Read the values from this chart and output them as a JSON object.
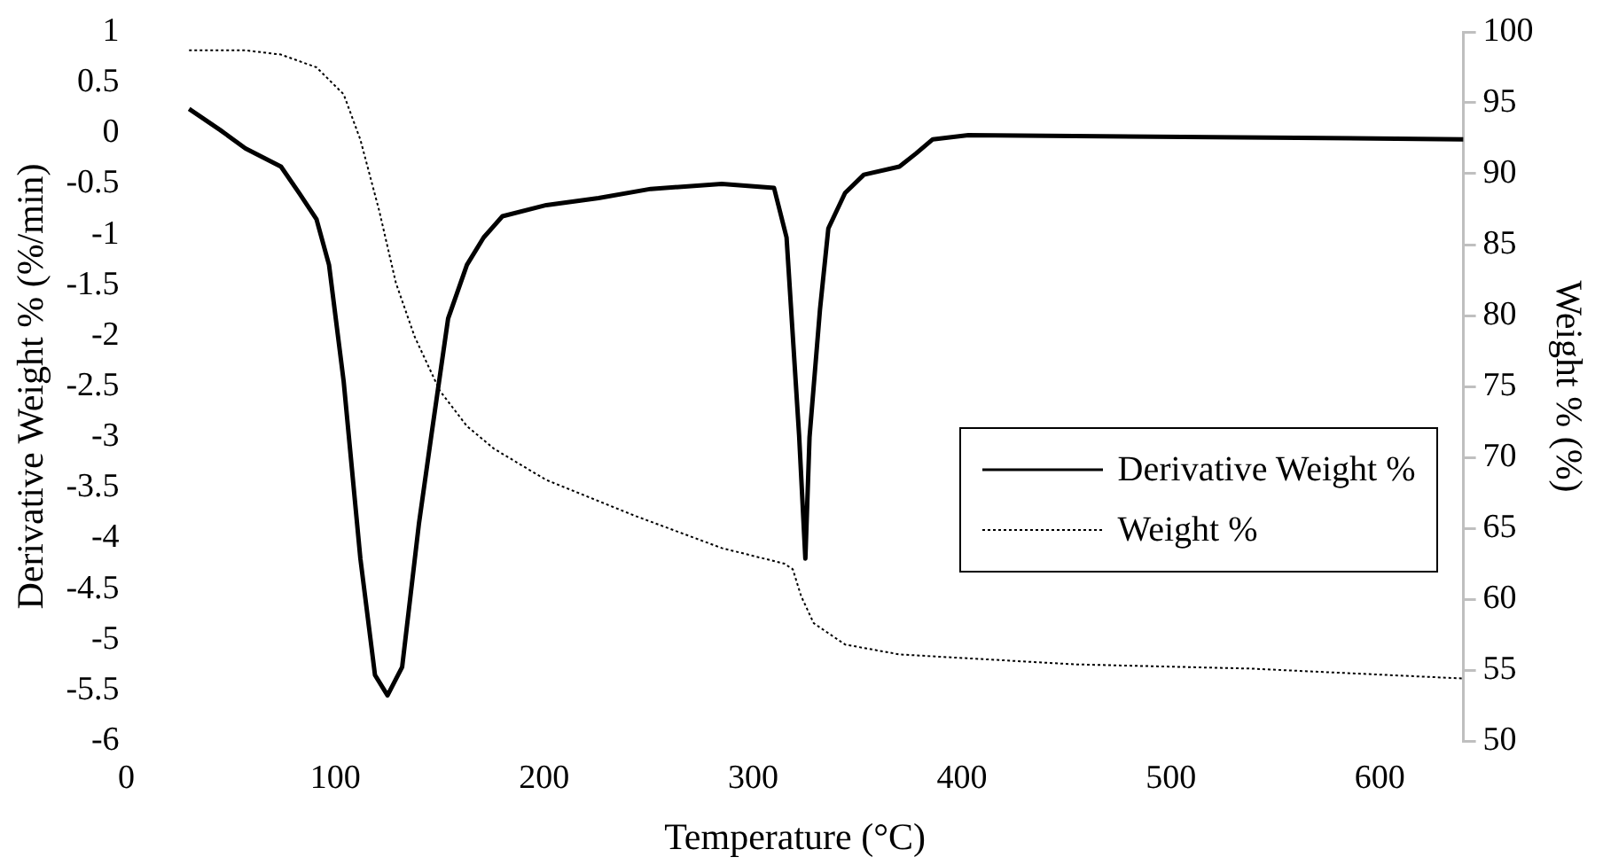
{
  "chart_data": {
    "type": "line",
    "xlabel": "Temperature (°C)",
    "ylabel": "Derivative Weight % (%/min)",
    "y2label": "Weight % (%)",
    "xlim": [
      0,
      640
    ],
    "xticks": [
      0,
      100,
      200,
      300,
      400,
      500,
      600
    ],
    "ylim": [
      -6,
      1
    ],
    "yticks": [
      -6,
      -5.5,
      -5,
      -4.5,
      -4,
      -3.5,
      -3,
      -2.5,
      -2,
      -1.5,
      -1,
      -0.5,
      0,
      0.5,
      1
    ],
    "y2lim": [
      50,
      100
    ],
    "y2ticks": [
      50,
      55,
      60,
      65,
      70,
      75,
      80,
      85,
      90,
      95,
      100
    ],
    "grid": false,
    "legend": "right",
    "marker": "none",
    "series": [
      {
        "name": "Derivative Weight %",
        "color": "#000000",
        "line_style": "solid",
        "x": [
          30,
          45,
          57,
          74,
          83,
          91,
          97,
          104,
          112,
          119,
          125,
          132,
          140,
          146,
          154,
          163,
          171,
          180,
          201,
          226,
          251,
          285,
          310,
          316,
          322,
          325,
          327,
          332,
          336,
          344,
          353,
          370,
          378,
          386,
          403,
          640
        ],
        "values": [
          0.24,
          0.03,
          -0.15,
          -0.33,
          -0.6,
          -0.85,
          -1.3,
          -2.45,
          -4.2,
          -5.35,
          -5.55,
          -5.27,
          -3.86,
          -2.98,
          -1.83,
          -1.3,
          -1.03,
          -0.82,
          -0.71,
          -0.64,
          -0.55,
          -0.5,
          -0.54,
          -1.03,
          -2.98,
          -4.2,
          -3.0,
          -1.74,
          -0.94,
          -0.59,
          -0.41,
          -0.33,
          -0.2,
          -0.06,
          -0.02,
          -0.06
        ]
      },
      {
        "name": "Weight %",
        "color": "#000000",
        "line_style": "dotted",
        "axis": "y2",
        "x": [
          30,
          57,
          74,
          91,
          104,
          112,
          121,
          129,
          138,
          150,
          163,
          176,
          201,
          243,
          285,
          315,
          319,
          323,
          329,
          344,
          370,
          454,
          538,
          640
        ],
        "values": [
          98.7,
          98.7,
          98.4,
          97.5,
          95.6,
          92.4,
          87.4,
          82.3,
          78.5,
          74.7,
          72.2,
          70.6,
          68.4,
          65.9,
          63.6,
          62.5,
          62.1,
          60.2,
          58.3,
          56.8,
          56.1,
          55.4,
          55.1,
          54.4
        ]
      }
    ]
  }
}
